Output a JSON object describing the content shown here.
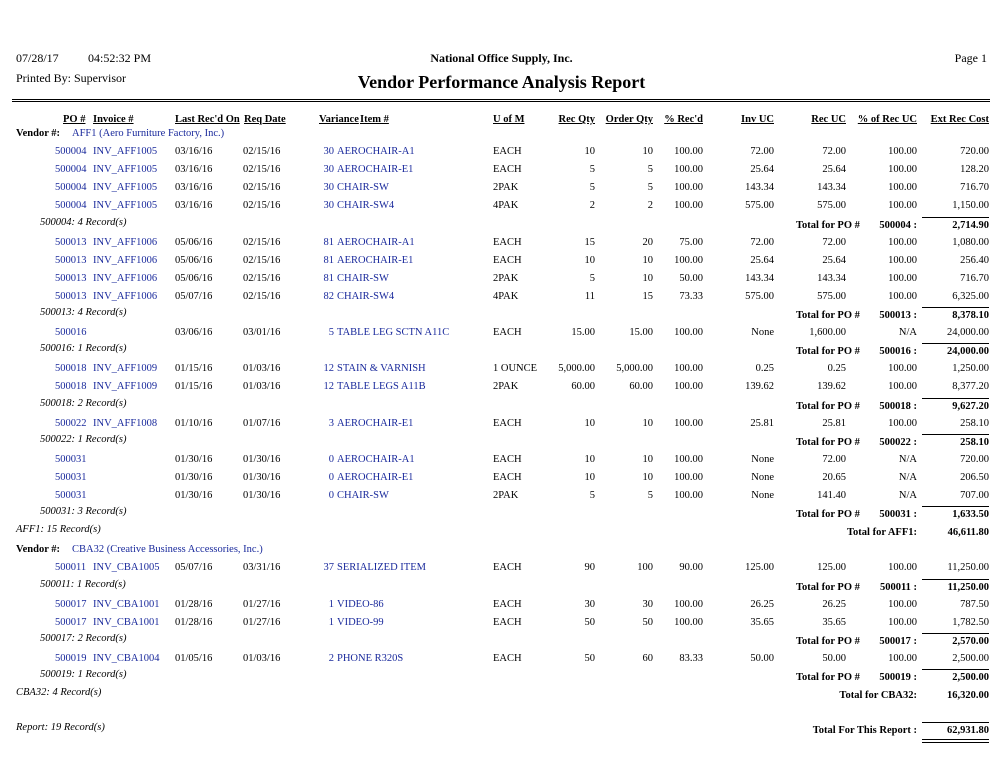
{
  "header": {
    "date": "07/28/17",
    "time": "04:52:32 PM",
    "company": "National Office Supply, Inc.",
    "title": "Vendor Performance Analysis Report",
    "page": "Page 1",
    "printed_by": "Printed By: Supervisor"
  },
  "columns": [
    "PO #",
    "Invoice #",
    "Last Rec'd On",
    "Req Date",
    "Variance",
    "Item #",
    "U of M",
    "Rec Qty",
    "Order Qty",
    "% Rec'd",
    "Inv UC",
    "Rec UC",
    "% of Rec UC",
    "Ext Rec Cost"
  ],
  "vendors": [
    {
      "label": "Vendor #:",
      "name": "AFF1 (Aero Furniture Factory, Inc.)",
      "pos": [
        {
          "rows": [
            [
              "500004",
              "INV_AFF1005",
              "03/16/16",
              "02/15/16",
              "30",
              "AEROCHAIR-A1",
              "EACH",
              "10",
              "10",
              "100.00",
              "72.00",
              "72.00",
              "100.00",
              "720.00"
            ],
            [
              "500004",
              "INV_AFF1005",
              "03/16/16",
              "02/15/16",
              "30",
              "AEROCHAIR-E1",
              "EACH",
              "5",
              "5",
              "100.00",
              "25.64",
              "25.64",
              "100.00",
              "128.20"
            ],
            [
              "500004",
              "INV_AFF1005",
              "03/16/16",
              "02/15/16",
              "30",
              "CHAIR-SW",
              "2PAK",
              "5",
              "5",
              "100.00",
              "143.34",
              "143.34",
              "100.00",
              "716.70"
            ],
            [
              "500004",
              "INV_AFF1005",
              "03/16/16",
              "02/15/16",
              "30",
              "CHAIR-SW4",
              "4PAK",
              "2",
              "2",
              "100.00",
              "575.00",
              "575.00",
              "100.00",
              "1,150.00"
            ]
          ],
          "count": "500004: 4 Record(s)",
          "total_label": "Total for PO #",
          "total_po": "500004 :",
          "total": "2,714.90"
        },
        {
          "rows": [
            [
              "500013",
              "INV_AFF1006",
              "05/06/16",
              "02/15/16",
              "81",
              "AEROCHAIR-A1",
              "EACH",
              "15",
              "20",
              "75.00",
              "72.00",
              "72.00",
              "100.00",
              "1,080.00"
            ],
            [
              "500013",
              "INV_AFF1006",
              "05/06/16",
              "02/15/16",
              "81",
              "AEROCHAIR-E1",
              "EACH",
              "10",
              "10",
              "100.00",
              "25.64",
              "25.64",
              "100.00",
              "256.40"
            ],
            [
              "500013",
              "INV_AFF1006",
              "05/06/16",
              "02/15/16",
              "81",
              "CHAIR-SW",
              "2PAK",
              "5",
              "10",
              "50.00",
              "143.34",
              "143.34",
              "100.00",
              "716.70"
            ],
            [
              "500013",
              "INV_AFF1006",
              "05/07/16",
              "02/15/16",
              "82",
              "CHAIR-SW4",
              "4PAK",
              "11",
              "15",
              "73.33",
              "575.00",
              "575.00",
              "100.00",
              "6,325.00"
            ]
          ],
          "count": "500013: 4 Record(s)",
          "total_label": "Total for PO #",
          "total_po": "500013 :",
          "total": "8,378.10"
        },
        {
          "rows": [
            [
              "500016",
              null,
              "03/06/16",
              "03/01/16",
              "5",
              "TABLE LEG SCTN A11C",
              "EACH",
              "15.00",
              "15.00",
              "100.00",
              "None",
              "1,600.00",
              "N/A",
              "24,000.00"
            ]
          ],
          "count": "500016: 1 Record(s)",
          "total_label": "Total for PO #",
          "total_po": "500016 :",
          "total": "24,000.00"
        },
        {
          "rows": [
            [
              "500018",
              "INV_AFF1009",
              "01/15/16",
              "01/03/16",
              "12",
              "STAIN & VARNISH",
              "1 OUNCE",
              "5,000.00",
              "5,000.00",
              "100.00",
              "0.25",
              "0.25",
              "100.00",
              "1,250.00"
            ],
            [
              "500018",
              "INV_AFF1009",
              "01/15/16",
              "01/03/16",
              "12",
              "TABLE LEGS A11B",
              "2PAK",
              "60.00",
              "60.00",
              "100.00",
              "139.62",
              "139.62",
              "100.00",
              "8,377.20"
            ]
          ],
          "count": "500018: 2 Record(s)",
          "total_label": "Total for PO #",
          "total_po": "500018 :",
          "total": "9,627.20"
        },
        {
          "rows": [
            [
              "500022",
              "INV_AFF1008",
              "01/10/16",
              "01/07/16",
              "3",
              "AEROCHAIR-E1",
              "EACH",
              "10",
              "10",
              "100.00",
              "25.81",
              "25.81",
              "100.00",
              "258.10"
            ]
          ],
          "count": "500022: 1 Record(s)",
          "total_label": "Total for PO #",
          "total_po": "500022 :",
          "total": "258.10"
        },
        {
          "rows": [
            [
              "500031",
              null,
              "01/30/16",
              "01/30/16",
              "0",
              "AEROCHAIR-A1",
              "EACH",
              "10",
              "10",
              "100.00",
              "None",
              "72.00",
              "N/A",
              "720.00"
            ],
            [
              "500031",
              null,
              "01/30/16",
              "01/30/16",
              "0",
              "AEROCHAIR-E1",
              "EACH",
              "10",
              "10",
              "100.00",
              "None",
              "20.65",
              "N/A",
              "206.50"
            ],
            [
              "500031",
              null,
              "01/30/16",
              "01/30/16",
              "0",
              "CHAIR-SW",
              "2PAK",
              "5",
              "5",
              "100.00",
              "None",
              "141.40",
              "N/A",
              "707.00"
            ]
          ],
          "count": "500031: 3 Record(s)",
          "total_label": "Total for PO #",
          "total_po": "500031 :",
          "total": "1,633.50"
        }
      ],
      "count": "AFF1: 15 Record(s)",
      "total_label": "Total for AFF1:",
      "total": "46,611.80"
    },
    {
      "label": "Vendor #:",
      "name": "CBA32 (Creative Business Accessories, Inc.)",
      "pos": [
        {
          "rows": [
            [
              "500011",
              "INV_CBA1005",
              "05/07/16",
              "03/31/16",
              "37",
              "SERIALIZED ITEM",
              "EACH",
              "90",
              "100",
              "90.00",
              "125.00",
              "125.00",
              "100.00",
              "11,250.00"
            ]
          ],
          "count": "500011: 1 Record(s)",
          "total_label": "Total for PO #",
          "total_po": "500011 :",
          "total": "11,250.00"
        },
        {
          "rows": [
            [
              "500017",
              "INV_CBA1001",
              "01/28/16",
              "01/27/16",
              "1",
              "VIDEO-86",
              "EACH",
              "30",
              "30",
              "100.00",
              "26.25",
              "26.25",
              "100.00",
              "787.50"
            ],
            [
              "500017",
              "INV_CBA1001",
              "01/28/16",
              "01/27/16",
              "1",
              "VIDEO-99",
              "EACH",
              "50",
              "50",
              "100.00",
              "35.65",
              "35.65",
              "100.00",
              "1,782.50"
            ]
          ],
          "count": "500017: 2 Record(s)",
          "total_label": "Total for PO #",
          "total_po": "500017 :",
          "total": "2,570.00"
        },
        {
          "rows": [
            [
              "500019",
              "INV_CBA1004",
              "01/05/16",
              "01/03/16",
              "2",
              "PHONE R320S",
              "EACH",
              "50",
              "60",
              "83.33",
              "50.00",
              "50.00",
              "100.00",
              "2,500.00"
            ]
          ],
          "count": "500019: 1 Record(s)",
          "total_label": "Total for PO #",
          "total_po": "500019 :",
          "total": "2,500.00"
        }
      ],
      "count": "CBA32: 4 Record(s)",
      "total_label": "Total for CBA32:",
      "total": "16,320.00"
    }
  ],
  "report": {
    "count": "Report: 19 Record(s)",
    "total_label": "Total For This Report :",
    "total": "62,931.80"
  }
}
